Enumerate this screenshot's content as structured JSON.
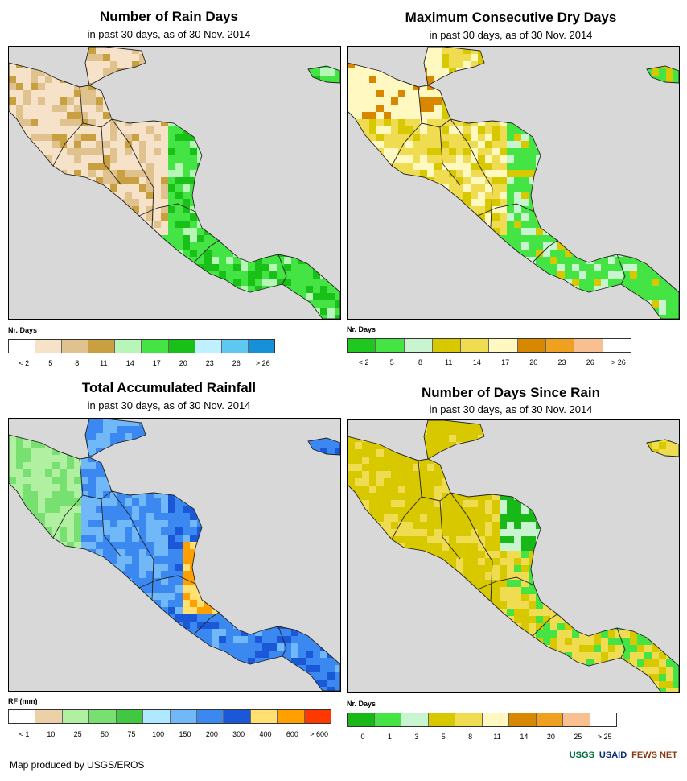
{
  "panels": [
    {
      "title": "Number of Rain Days",
      "subtitle": "in past 30 days, as of 30 Nov. 2014",
      "legend_title": "Nr. Days",
      "colors": [
        "#ffffff",
        "#f5e2c8",
        "#e0c28e",
        "#c8a040",
        "#b8f5b8",
        "#44e444",
        "#18c018",
        "#c0f0ff",
        "#5ec8f0",
        "#1890d8"
      ],
      "labels": [
        "< 2",
        "5",
        "8",
        "11",
        "14",
        "17",
        "20",
        "23",
        "26",
        "> 26"
      ],
      "scheme": "raindays"
    },
    {
      "title": "Maximum Consecutive Dry Days",
      "subtitle": "in past 30 days, as of 30 Nov. 2014",
      "legend_title": "Nr. Days",
      "colors": [
        "#1ec81e",
        "#44e444",
        "#c8f5d0",
        "#d8c800",
        "#f0dc50",
        "#fff8c0",
        "#d88800",
        "#f0a020",
        "#f8c090",
        "#ffffff"
      ],
      "labels": [
        "< 2",
        "5",
        "8",
        "11",
        "14",
        "17",
        "20",
        "23",
        "26",
        "> 26"
      ],
      "scheme": "drydays"
    },
    {
      "title": "Total Accumulated Rainfall",
      "subtitle": "in past 30 days, as of 30 Nov. 2014",
      "legend_title": "RF (mm)",
      "colors": [
        "#ffffff",
        "#ecd0a8",
        "#b0f0a0",
        "#78e070",
        "#40c840",
        "#b0e8ff",
        "#70b8f8",
        "#3a88f0",
        "#1a58d8",
        "#ffe070",
        "#ffa000",
        "#ff3800"
      ],
      "labels": [
        "< 1",
        "10",
        "25",
        "50",
        "75",
        "100",
        "150",
        "200",
        "300",
        "400",
        "600",
        "> 600"
      ],
      "scheme": "rainfall"
    },
    {
      "title": "Number of Days Since Rain",
      "subtitle": "in past 30 days, as of 30 Nov. 2014",
      "legend_title": "Nr. Days",
      "colors": [
        "#18b818",
        "#44e444",
        "#c8f5d0",
        "#d8c800",
        "#f0dc50",
        "#fff8c0",
        "#d88800",
        "#f0a020",
        "#f8c090",
        "#ffffff"
      ],
      "labels": [
        "0",
        "1",
        "3",
        "5",
        "8",
        "11",
        "14",
        "20",
        "25",
        "> 25"
      ],
      "scheme": "sincerain"
    }
  ],
  "footer": "Map produced by USGS/EROS",
  "logos": [
    "USGS",
    "USAID",
    "FEWS NET"
  ]
}
